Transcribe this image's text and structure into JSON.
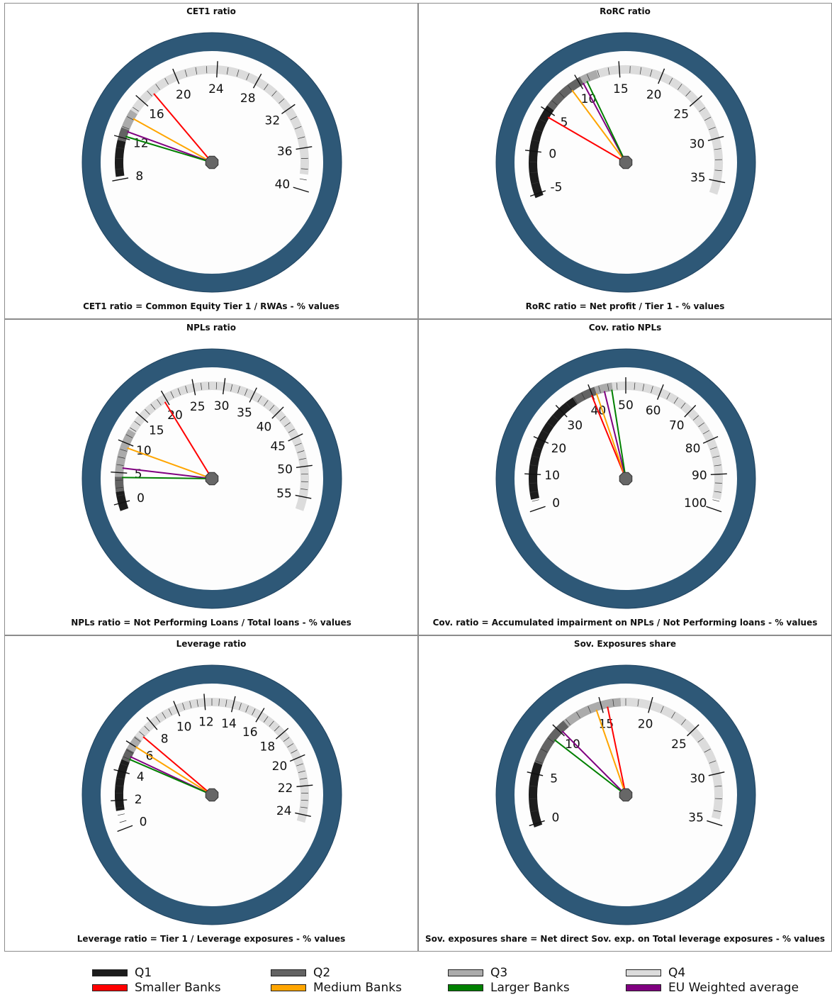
{
  "colors": {
    "q1": "#1c1c1c",
    "q2": "#636363",
    "q3": "#ababab",
    "q4": "#dcdcdc",
    "smaller": "#ff0000",
    "medium": "#ffa500",
    "larger": "#008000",
    "eu": "#800080",
    "rim": "#2e5877",
    "hub": "#676767"
  },
  "legend": [
    {
      "key": "q1",
      "label": "Q1"
    },
    {
      "key": "q2",
      "label": "Q2"
    },
    {
      "key": "q3",
      "label": "Q3"
    },
    {
      "key": "q4",
      "label": "Q4"
    },
    {
      "key": "smaller",
      "label": "Smaller Banks"
    },
    {
      "key": "medium",
      "label": "Medium Banks"
    },
    {
      "key": "larger",
      "label": "Larger Banks"
    },
    {
      "key": "eu",
      "label": "EU Weighted average"
    }
  ],
  "chart_data": [
    {
      "type": "gauge",
      "title": "CET1 ratio",
      "footnote": "CET1 ratio = Common Equity Tier 1 / RWAs  - % values",
      "min": 5,
      "max": 42,
      "ticks": [
        8,
        12,
        16,
        20,
        24,
        28,
        32,
        36,
        40
      ],
      "bands": [
        {
          "q": "q1",
          "from": 8.3,
          "to": 11.7
        },
        {
          "q": "q2",
          "from": 11.7,
          "to": 12.9
        },
        {
          "q": "q3",
          "from": 12.9,
          "to": 14.7
        },
        {
          "q": "q4",
          "from": 14.7,
          "to": 38.5
        }
      ],
      "needles": {
        "smaller": 17.3,
        "medium": 14.1,
        "larger": 12.2,
        "eu": 12.7
      }
    },
    {
      "type": "gauge",
      "title": "RoRC ratio",
      "footnote": "RoRC ratio = Net profit / Tier 1 - % values",
      "min": -7,
      "max": 38.5,
      "ticks": [
        -5,
        0,
        5,
        10,
        15,
        20,
        25,
        30,
        35
      ],
      "bands": [
        {
          "q": "q1",
          "from": -5.4,
          "to": 5.5
        },
        {
          "q": "q2",
          "from": 5.5,
          "to": 10.4
        },
        {
          "q": "q3",
          "from": 10.4,
          "to": 12.4
        },
        {
          "q": "q4",
          "from": 12.4,
          "to": 36.5
        }
      ],
      "needles": {
        "smaller": 4.4,
        "medium": 8.8,
        "larger": 10.9,
        "eu": 10.4
      }
    },
    {
      "type": "gauge",
      "title": "NPLs ratio",
      "footnote": "NPLs ratio = Not Performing Loans / Total loans - % values",
      "min": -4,
      "max": 60,
      "ticks": [
        0,
        5,
        10,
        15,
        20,
        25,
        30,
        35,
        40,
        45,
        50,
        55
      ],
      "bands": [
        {
          "q": "q1",
          "from": -1.2,
          "to": 1.9
        },
        {
          "q": "q2",
          "from": 1.9,
          "to": 4.3
        },
        {
          "q": "q3",
          "from": 4.3,
          "to": 12.2
        },
        {
          "q": "q4",
          "from": 12.2,
          "to": 57.2
        }
      ],
      "needles": {
        "smaller": 19.6,
        "medium": 9.3,
        "larger": 4.2,
        "eu": 5.8
      }
    },
    {
      "type": "gauge",
      "title": "Cov. ratio NPLs",
      "footnote": "Cov. ratio = Accumulated impairment on NPLs / Not Performing loans - % values",
      "min": -5,
      "max": 105,
      "ticks": [
        0,
        10,
        20,
        30,
        40,
        50,
        60,
        70,
        80,
        90,
        100
      ],
      "bands": [
        {
          "q": "q1",
          "from": 3,
          "to": 34.8
        },
        {
          "q": "q2",
          "from": 34.8,
          "to": 41.3
        },
        {
          "q": "q3",
          "from": 41.3,
          "to": 46.2
        },
        {
          "q": "q4",
          "from": 46.2,
          "to": 97
        }
      ],
      "needles": {
        "smaller": 39.8,
        "medium": 41.3,
        "larger": 45.9,
        "eu": 43.7
      }
    },
    {
      "type": "gauge",
      "title": "Leverage ratio",
      "footnote": "Leverage ratio = Tier 1 / Leverage exposures - % values",
      "min": -1,
      "max": 26,
      "ticks": [
        0,
        2,
        4,
        6,
        8,
        10,
        12,
        14,
        16,
        18,
        20,
        22,
        24
      ],
      "bands": [
        {
          "q": "q1",
          "from": 1.3,
          "to": 4.8
        },
        {
          "q": "q2",
          "from": 4.8,
          "to": 5.6
        },
        {
          "q": "q3",
          "from": 5.6,
          "to": 6.6
        },
        {
          "q": "q4",
          "from": 6.6,
          "to": 24.5
        }
      ],
      "needles": {
        "smaller": 6.9,
        "medium": 6.0,
        "larger": 5.0,
        "eu": 5.2
      }
    },
    {
      "type": "gauge",
      "title": "Sov. Exposures share",
      "footnote": "Sov. exposures share = Net direct Sov. exp. on Total leverage exposures - % values",
      "min": -2,
      "max": 37,
      "ticks": [
        0,
        5,
        10,
        15,
        20,
        25,
        30,
        35
      ],
      "bands": [
        {
          "q": "q1",
          "from": -0.3,
          "to": 6.1
        },
        {
          "q": "q2",
          "from": 6.1,
          "to": 11.0
        },
        {
          "q": "q3",
          "from": 11.0,
          "to": 17.0
        },
        {
          "q": "q4",
          "from": 17.0,
          "to": 34.5
        }
      ],
      "needles": {
        "smaller": 15.6,
        "medium": 14.4,
        "larger": 9.0,
        "eu": 10.2
      }
    }
  ]
}
